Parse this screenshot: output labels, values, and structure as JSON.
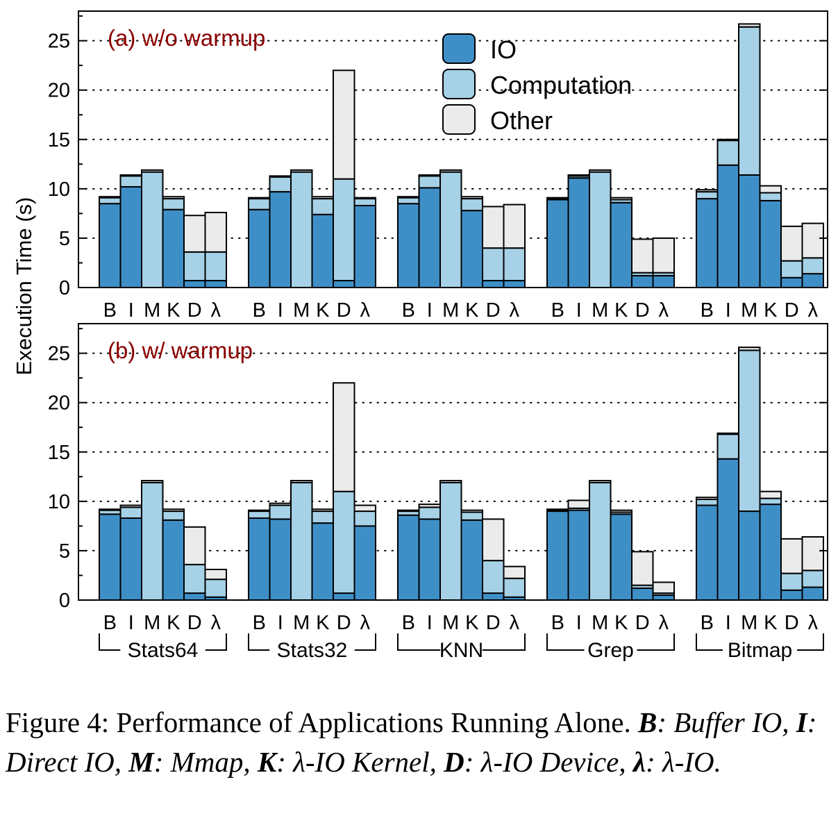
{
  "chart_data": [
    {
      "type": "bar",
      "stacked": true,
      "title": "(a) w/o warmup",
      "ylabel": "Execution Time (s)",
      "ylim": [
        0,
        28
      ],
      "yticks": [
        0,
        5,
        10,
        15,
        20,
        25
      ],
      "grid": "horizontal-dotted",
      "legend_position": "top-center",
      "series_names": [
        "IO",
        "Computation",
        "Other"
      ],
      "groups": [
        "Stats64",
        "Stats32",
        "KNN",
        "Grep",
        "Bitmap"
      ],
      "bar_labels": [
        "B",
        "I",
        "M",
        "K",
        "D",
        "λ"
      ],
      "data": [
        [
          [
            8.5,
            0.6,
            0.1
          ],
          [
            10.2,
            1.1,
            0.1
          ],
          [
            0.0,
            11.7,
            0.2
          ],
          [
            7.9,
            1.1,
            0.2
          ],
          [
            0.7,
            2.9,
            3.7
          ],
          [
            0.7,
            2.9,
            4.0
          ]
        ],
        [
          [
            7.9,
            1.1,
            0.1
          ],
          [
            9.7,
            1.5,
            0.1
          ],
          [
            0.0,
            11.7,
            0.2
          ],
          [
            7.4,
            1.6,
            0.2
          ],
          [
            0.7,
            10.3,
            11.0
          ],
          [
            8.3,
            0.7,
            0.1
          ]
        ],
        [
          [
            8.5,
            0.6,
            0.1
          ],
          [
            10.1,
            1.2,
            0.1
          ],
          [
            0.0,
            11.7,
            0.2
          ],
          [
            7.8,
            1.2,
            0.2
          ],
          [
            0.7,
            3.3,
            4.2
          ],
          [
            0.7,
            3.3,
            4.4
          ]
        ],
        [
          [
            8.9,
            0.1,
            0.1
          ],
          [
            11.1,
            0.2,
            0.1
          ],
          [
            0.0,
            11.7,
            0.2
          ],
          [
            8.6,
            0.3,
            0.2
          ],
          [
            1.2,
            0.3,
            3.4
          ],
          [
            1.2,
            0.3,
            3.5
          ]
        ],
        [
          [
            9.0,
            0.7,
            0.2
          ],
          [
            12.4,
            2.5,
            0.1
          ],
          [
            11.4,
            15.0,
            0.3
          ],
          [
            8.8,
            0.8,
            0.7
          ],
          [
            1.0,
            1.7,
            3.5
          ],
          [
            1.4,
            1.6,
            3.5
          ]
        ]
      ]
    },
    {
      "type": "bar",
      "stacked": true,
      "title": "(b) w/ warmup",
      "ylabel": "Execution Time (s)",
      "ylim": [
        0,
        28
      ],
      "yticks": [
        0,
        5,
        10,
        15,
        20,
        25
      ],
      "grid": "horizontal-dotted",
      "series_names": [
        "IO",
        "Computation",
        "Other"
      ],
      "groups": [
        "Stats64",
        "Stats32",
        "KNN",
        "Grep",
        "Bitmap"
      ],
      "bar_labels": [
        "B",
        "I",
        "M",
        "K",
        "D",
        "λ"
      ],
      "data": [
        [
          [
            8.7,
            0.4,
            0.1
          ],
          [
            8.3,
            1.1,
            0.2
          ],
          [
            0.0,
            11.9,
            0.2
          ],
          [
            8.1,
            0.9,
            0.2
          ],
          [
            0.7,
            2.9,
            3.8
          ],
          [
            0.3,
            1.8,
            1.0
          ]
        ],
        [
          [
            8.3,
            0.7,
            0.1
          ],
          [
            8.2,
            1.4,
            0.2
          ],
          [
            0.0,
            11.9,
            0.2
          ],
          [
            7.8,
            1.2,
            0.2
          ],
          [
            0.7,
            10.3,
            11.0
          ],
          [
            7.5,
            1.5,
            0.6
          ]
        ],
        [
          [
            8.6,
            0.4,
            0.1
          ],
          [
            8.2,
            1.2,
            0.3
          ],
          [
            0.0,
            11.9,
            0.2
          ],
          [
            8.1,
            0.8,
            0.2
          ],
          [
            0.7,
            3.3,
            4.2
          ],
          [
            0.3,
            1.9,
            1.2
          ]
        ],
        [
          [
            9.0,
            0.1,
            0.1
          ],
          [
            9.1,
            0.2,
            0.8
          ],
          [
            0.0,
            11.9,
            0.2
          ],
          [
            8.7,
            0.2,
            0.2
          ],
          [
            1.2,
            0.3,
            3.4
          ],
          [
            0.5,
            0.2,
            1.1
          ]
        ],
        [
          [
            9.6,
            0.6,
            0.2
          ],
          [
            14.3,
            2.5,
            0.1
          ],
          [
            9.0,
            16.3,
            0.3
          ],
          [
            9.7,
            0.6,
            0.7
          ],
          [
            1.0,
            1.7,
            3.5
          ],
          [
            1.3,
            1.7,
            3.4
          ]
        ]
      ]
    }
  ],
  "legend": {
    "items": [
      "IO",
      "Computation",
      "Other"
    ]
  },
  "colors": {
    "io": "#3f8fc7",
    "computation": "#a6d1e6",
    "other": "#ebebeb",
    "title": "#8b0000"
  },
  "caption": {
    "prefix": "Figure 4: Performance of Applications Running Alone. ",
    "k1": "B",
    "t1": ": Buffer IO, ",
    "k2": "I",
    "t2": ": Direct IO, ",
    "k3": "M",
    "t3": ": Mmap, ",
    "k4": "K",
    "t4": ": λ-IO Kernel, ",
    "k5": "D",
    "t5": ": λ-IO Device, ",
    "k6": "λ",
    "t6": ": λ-IO."
  }
}
